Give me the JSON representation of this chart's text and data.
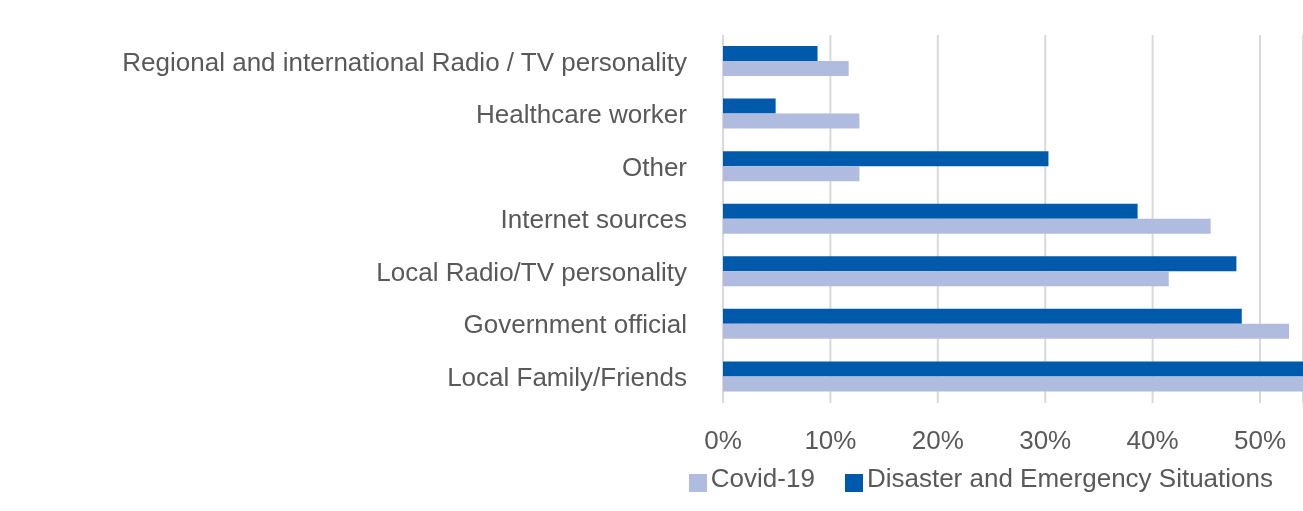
{
  "chart_data": {
    "type": "bar",
    "orientation": "horizontal",
    "categories": [
      "Regional and international Radio / TV personality",
      "Healthcare worker",
      "Other ",
      "Internet sources",
      "Local Radio/TV personality",
      "Government official",
      "Local Family/Friends"
    ],
    "series": [
      {
        "name": "Disaster and Emergency Situations",
        "color": "#005aab",
        "values": [
          8.8,
          4.9,
          30.3,
          38.6,
          47.8,
          48.3,
          54
        ]
      },
      {
        "name": "Covid-19",
        "color": "#b0bbe0",
        "values": [
          11.7,
          12.7,
          12.7,
          45.4,
          41.5,
          52.7,
          54
        ]
      }
    ],
    "xlim": [
      0,
      54
    ],
    "xticks": [
      {
        "value": 0,
        "label": "0%"
      },
      {
        "value": 10,
        "label": "10%"
      },
      {
        "value": 20,
        "label": "20%"
      },
      {
        "value": 30,
        "label": "30%"
      },
      {
        "value": 40,
        "label": "40%"
      },
      {
        "value": 50,
        "label": "50%"
      }
    ],
    "grid": "x",
    "legend": "bottom"
  }
}
